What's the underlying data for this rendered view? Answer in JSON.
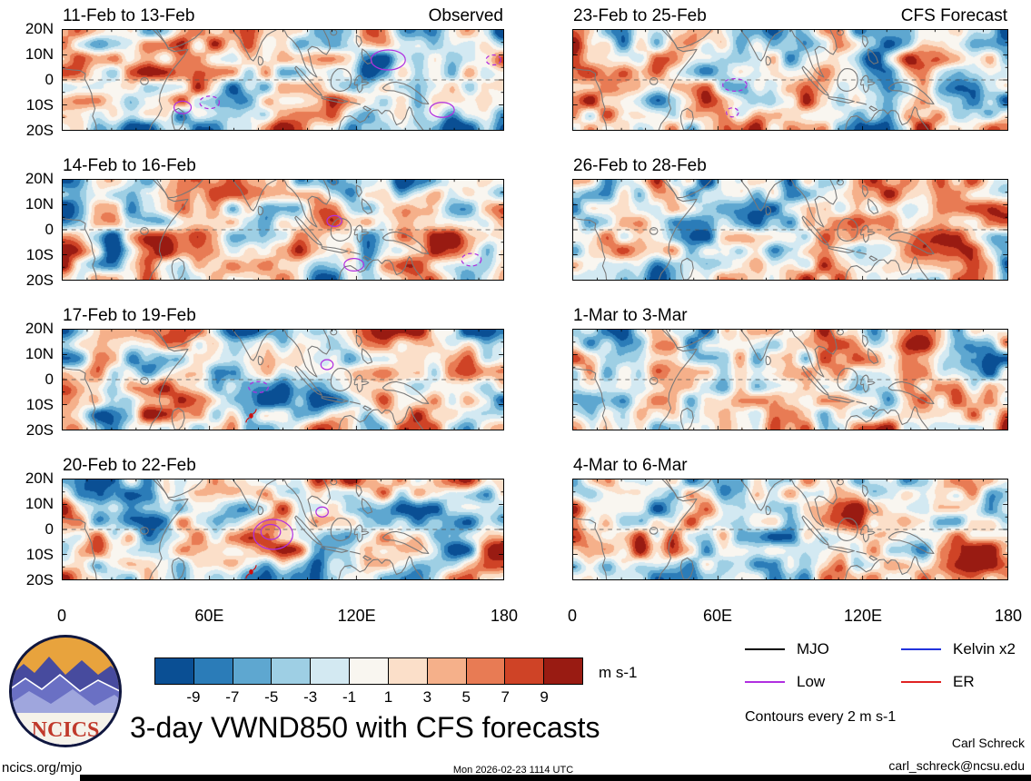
{
  "figure": {
    "title": "3-day VWND850 with CFS forecasts",
    "contour_note": "Contours every 2 m s-1",
    "site": "ncics.org/mjo",
    "timestamp": "Mon 2026-02-23 1114 UTC",
    "credit_name": "Carl Schreck",
    "credit_email": "carl_schreck@ncsu.edu",
    "logo_text": "NCICS"
  },
  "chart_data": {
    "type": "heatmap",
    "variable": "VWND850",
    "columns": [
      "Observed",
      "CFS Forecast"
    ],
    "x_axis": {
      "labels": [
        "0",
        "60E",
        "120E",
        "180"
      ],
      "positions_deg": [
        0,
        60,
        120,
        180
      ],
      "range_deg": [
        0,
        180
      ]
    },
    "y_axis": {
      "labels": [
        "20N",
        "10N",
        "0",
        "10S",
        "20S"
      ],
      "positions_lat": [
        20,
        10,
        0,
        -10,
        -20
      ],
      "range_lat": [
        20,
        -20
      ]
    },
    "colorbar": {
      "units": "m s-1",
      "levels": [
        -9,
        -7,
        -5,
        -3,
        -1,
        1,
        3,
        5,
        7,
        9
      ],
      "labels": [
        "-9",
        "-7",
        "-5",
        "-3",
        "-1",
        "1",
        "3",
        "5",
        "7",
        "9"
      ],
      "colors": [
        "#0a4f94",
        "#2b7cb8",
        "#5ea7d0",
        "#9ecfe4",
        "#d3e9f2",
        "#f9f6f0",
        "#fbdfc9",
        "#f5b08a",
        "#e87b54",
        "#cf4326",
        "#991b12"
      ]
    },
    "legend": [
      {
        "label": "MJO",
        "color": "#000000"
      },
      {
        "label": "Kelvin x2",
        "color": "#2233dd"
      },
      {
        "label": "Low",
        "color": "#b02fe0"
      },
      {
        "label": "ER",
        "color": "#e02222"
      }
    ],
    "overlay_colors": {
      "low": "#b02fe0",
      "cyclone": "#cc1111"
    },
    "panels": [
      {
        "label": "11-Feb to 13-Feb",
        "corner": "Observed",
        "column": "Observed",
        "seed": 11,
        "low_contours": [
          {
            "lon": 133,
            "lat": 8,
            "rx": 7,
            "ry": 4
          },
          {
            "lon": 49,
            "lat": -11,
            "rx": 3.5,
            "ry": 2.5
          },
          {
            "lon": 60,
            "lat": -9,
            "rx": 4,
            "ry": 2.5,
            "dashed": true
          },
          {
            "lon": 155,
            "lat": -12,
            "rx": 5,
            "ry": 3
          },
          {
            "lon": 176,
            "lat": 8,
            "rx": 3,
            "ry": 2,
            "dashed": true
          }
        ],
        "cyclone_markers": []
      },
      {
        "label": "23-Feb to 25-Feb",
        "corner": "CFS Forecast",
        "column": "CFS Forecast",
        "seed": 23,
        "low_contours": [
          {
            "lon": 67,
            "lat": -2,
            "rx": 5,
            "ry": 2.5,
            "dashed": true
          },
          {
            "lon": 66,
            "lat": -13,
            "rx": 2.5,
            "ry": 1.8,
            "dashed": true
          }
        ],
        "cyclone_markers": []
      },
      {
        "label": "14-Feb to 16-Feb",
        "corner": "",
        "column": "Observed",
        "seed": 14,
        "low_contours": [
          {
            "lon": 111,
            "lat": 3.5,
            "rx": 3,
            "ry": 2.2
          },
          {
            "lon": 119,
            "lat": -14,
            "rx": 4,
            "ry": 2.5
          },
          {
            "lon": 167,
            "lat": -12,
            "rx": 4,
            "ry": 2.5,
            "dashed": true
          }
        ],
        "cyclone_markers": []
      },
      {
        "label": "26-Feb to 28-Feb",
        "corner": "",
        "column": "CFS Forecast",
        "seed": 26,
        "low_contours": [],
        "cyclone_markers": []
      },
      {
        "label": "17-Feb to 19-Feb",
        "corner": "",
        "column": "Observed",
        "seed": 17,
        "low_contours": [
          {
            "lon": 80,
            "lat": -3,
            "rx": 4,
            "ry": 2.2,
            "dashed": true
          },
          {
            "lon": 108,
            "lat": 6,
            "rx": 2.5,
            "ry": 2
          }
        ],
        "cyclone_markers": [
          {
            "lon": 77,
            "lat": -14.5
          }
        ]
      },
      {
        "label": "1-Mar to 3-Mar",
        "corner": "",
        "column": "CFS Forecast",
        "seed": 31,
        "low_contours": [],
        "cyclone_markers": []
      },
      {
        "label": "20-Feb to 22-Feb",
        "corner": "",
        "column": "Observed",
        "seed": 20,
        "low_contours": [
          {
            "lon": 86,
            "lat": -2,
            "rx": 8,
            "ry": 6
          },
          {
            "lon": 85,
            "lat": -1,
            "rx": 4,
            "ry": 3
          },
          {
            "lon": 106,
            "lat": 7,
            "rx": 2.5,
            "ry": 2
          }
        ],
        "cyclone_markers": [
          {
            "lon": 77,
            "lat": -17
          }
        ]
      },
      {
        "label": "4-Mar to 6-Mar",
        "corner": "",
        "column": "CFS Forecast",
        "seed": 36,
        "low_contours": [],
        "cyclone_markers": []
      }
    ]
  }
}
